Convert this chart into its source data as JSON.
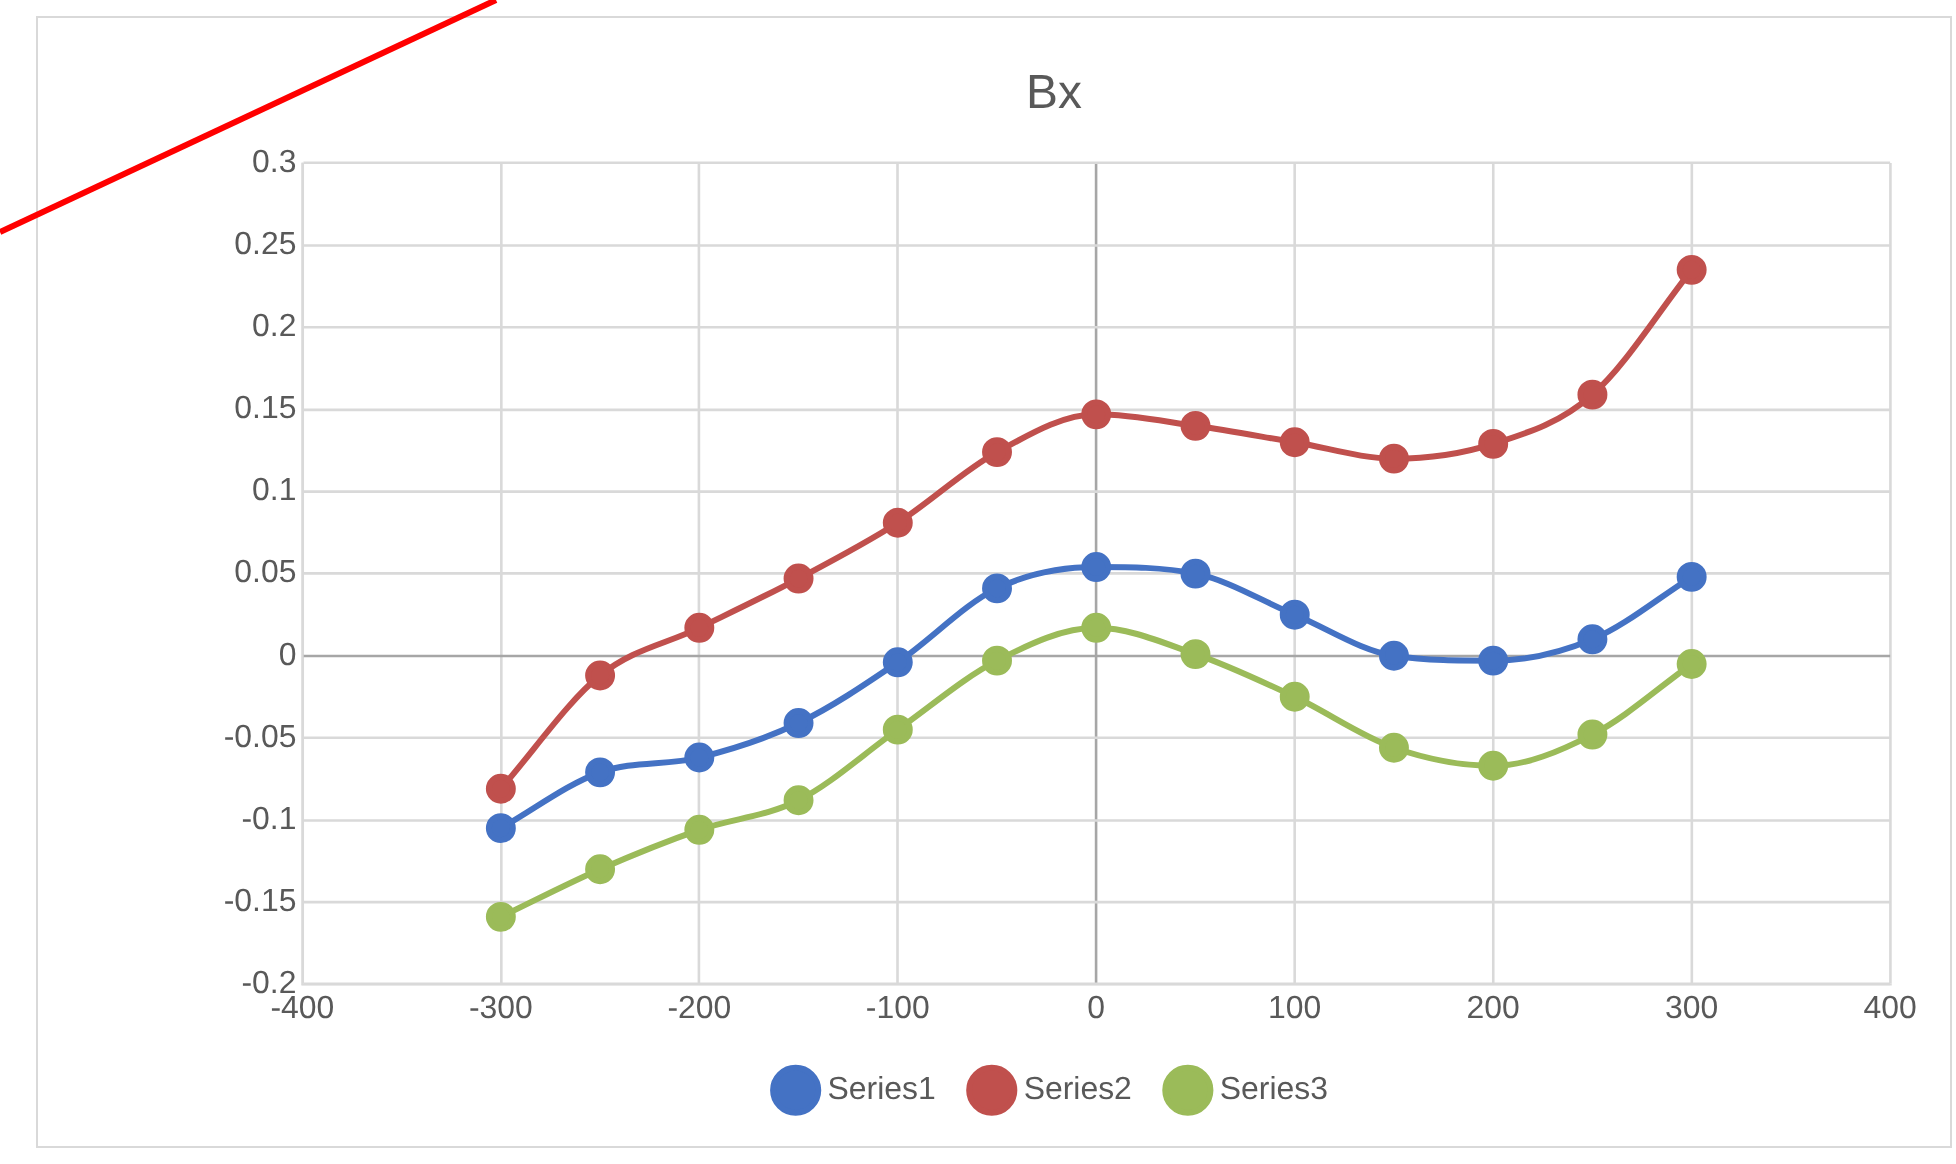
{
  "chart_data": {
    "type": "line",
    "title": "Bx",
    "xlim": [
      -400,
      400
    ],
    "xticks": [
      -400,
      -300,
      -200,
      -100,
      0,
      100,
      200,
      300,
      400
    ],
    "ylim": [
      -0.2,
      0.3
    ],
    "yticks": [
      -0.2,
      -0.15,
      -0.1,
      -0.05,
      0,
      0.05,
      0.1,
      0.15,
      0.2,
      0.25,
      0.3
    ],
    "x": [
      -300,
      -250,
      -200,
      -150,
      -100,
      -50,
      0,
      50,
      100,
      150,
      200,
      250,
      300
    ],
    "grid": true,
    "legend": "bottom",
    "marker": "circle",
    "line_style": "solid",
    "series": [
      {
        "name": "Series1",
        "color": "#4472c4",
        "values": [
          -0.105,
          -0.071,
          -0.062,
          -0.041,
          -0.004,
          0.041,
          0.054,
          0.05,
          0.025,
          0,
          -0.003,
          0.01,
          0.048
        ]
      },
      {
        "name": "Series2",
        "color": "#c0504d",
        "values": [
          -0.081,
          -0.012,
          0.017,
          0.047,
          0.081,
          0.124,
          0.147,
          0.14,
          0.13,
          0.12,
          0.129,
          0.159,
          0.235
        ]
      },
      {
        "name": "Series3",
        "color": "#9bbb59",
        "values": [
          -0.159,
          -0.13,
          -0.106,
          -0.088,
          -0.045,
          -0.003,
          0.017,
          0.001,
          -0.025,
          -0.056,
          -0.067,
          -0.048,
          -0.005
        ]
      }
    ]
  }
}
